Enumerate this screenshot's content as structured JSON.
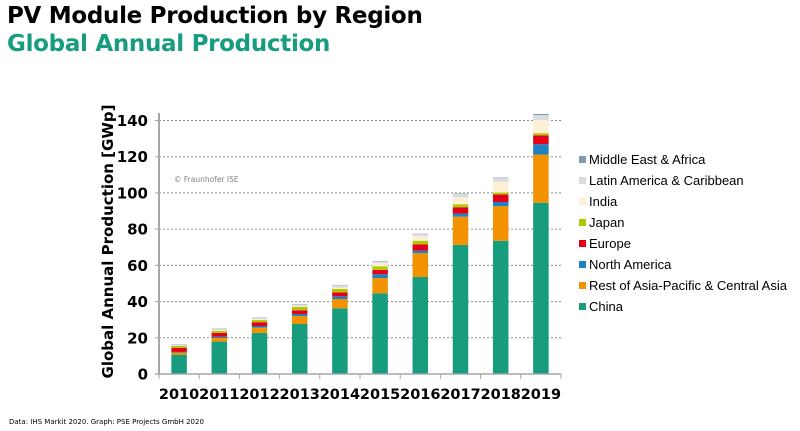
{
  "header": {
    "title": "PV Module Production by Region",
    "subtitle": "Global Annual Production",
    "subtitle_color": "#179c7d"
  },
  "footer": {
    "source": "Data: IHS Markit 2020. Graph: PSE Projects GmbH 2020"
  },
  "chart_data": {
    "type": "bar",
    "stacked": true,
    "title": "Global Annual Production",
    "xlabel": "",
    "ylabel": "Global Annual Production  [GWp]",
    "ylim": [
      0,
      140
    ],
    "yticks": [
      0,
      20,
      40,
      60,
      80,
      100,
      120,
      140
    ],
    "ytick_labels": [
      "0",
      "20",
      "40",
      "60",
      "80",
      "100",
      "120",
      "140"
    ],
    "grid": "horizontal dotted",
    "legend_position": "right",
    "annotation": "© Fraunhofer ISE",
    "categories": [
      "2010",
      "2011",
      "2012",
      "2013",
      "2014",
      "2015",
      "2016",
      "2017",
      "2018",
      "2019"
    ],
    "series": [
      {
        "name": "China",
        "color": "#179c7d",
        "values": [
          10.5,
          17.9,
          22.7,
          27.6,
          36.3,
          44.6,
          53.6,
          71.3,
          73.6,
          94.6
        ]
      },
      {
        "name": "Rest of Asia-Pacific & Central Asia",
        "color": "#f39200",
        "values": [
          1.3,
          2.0,
          2.9,
          4.4,
          5.1,
          8.4,
          13.1,
          15.6,
          19.1,
          26.6
        ]
      },
      {
        "name": "North America",
        "color": "#1f82c0",
        "values": [
          0.4,
          0.7,
          0.9,
          1.1,
          1.5,
          2.1,
          1.4,
          1.7,
          2.3,
          5.7
        ]
      },
      {
        "name": "Europe",
        "color": "#e2001a",
        "values": [
          2.2,
          2.1,
          2.1,
          2.1,
          2.2,
          2.4,
          3.5,
          3.5,
          4.1,
          4.9
        ]
      },
      {
        "name": "Japan",
        "color": "#b1c800",
        "values": [
          1.1,
          1.1,
          1.2,
          1.8,
          1.9,
          2.0,
          2.0,
          1.7,
          1.1,
          1.2
        ]
      },
      {
        "name": "India",
        "color": "#feefd6",
        "values": [
          0.2,
          0.3,
          0.4,
          0.4,
          0.7,
          1.7,
          2.5,
          3.8,
          6.0,
          7.3
        ]
      },
      {
        "name": "Latin America & Caribbean",
        "color": "#dadcde",
        "values": [
          0.5,
          0.8,
          0.8,
          1.1,
          1.3,
          1.0,
          1.2,
          1.8,
          2.0,
          2.7
        ]
      },
      {
        "name": "Middle East & Africa",
        "color": "#7f9bb0",
        "values": [
          0.2,
          0.2,
          0.2,
          0.2,
          0.2,
          0.2,
          0.2,
          0.2,
          0.3,
          0.6
        ]
      }
    ],
    "legend_order": [
      "Middle East & Africa",
      "Latin America & Caribbean",
      "India",
      "Japan",
      "Europe",
      "North America",
      "Rest of Asia-Pacific & Central Asia",
      "China"
    ]
  }
}
